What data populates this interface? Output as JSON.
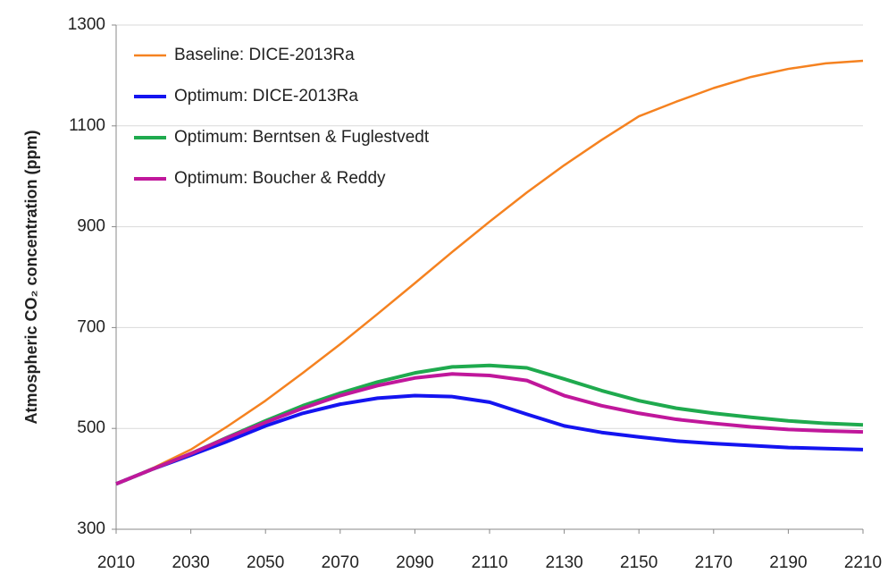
{
  "chart_data": {
    "type": "line",
    "y_label": "Atmospheric CO₂ concentration (ppm)",
    "x": [
      2010,
      2020,
      2030,
      2040,
      2050,
      2060,
      2070,
      2080,
      2090,
      2100,
      2110,
      2120,
      2130,
      2140,
      2150,
      2160,
      2170,
      2180,
      2190,
      2200,
      2210
    ],
    "xlim": [
      2010,
      2210
    ],
    "xticks": [
      2010,
      2030,
      2050,
      2070,
      2090,
      2110,
      2130,
      2150,
      2170,
      2190,
      2210
    ],
    "ylim": [
      300,
      1300
    ],
    "yticks": [
      300,
      500,
      700,
      900,
      1100,
      1300
    ],
    "grid": true,
    "legend": "upper left",
    "series": [
      {
        "name": "Baseline: DICE-2013Ra",
        "color": "#f58220",
        "width": 2.5,
        "values": [
          390,
          422,
          458,
          505,
          555,
          610,
          667,
          727,
          788,
          850,
          910,
          968,
          1022,
          1072,
          1119,
          1148,
          1175,
          1197,
          1213,
          1224,
          1229
        ]
      },
      {
        "name": "Optimum: DICE-2013Ra",
        "color": "#1414f0",
        "width": 4,
        "values": [
          390,
          420,
          447,
          475,
          505,
          530,
          548,
          560,
          565,
          563,
          552,
          528,
          505,
          492,
          483,
          475,
          470,
          466,
          462,
          460,
          458
        ]
      },
      {
        "name": "Optimum: Berntsen & Fuglestvedt",
        "color": "#1faa4e",
        "width": 4,
        "values": [
          390,
          420,
          450,
          483,
          515,
          545,
          570,
          592,
          610,
          622,
          625,
          620,
          598,
          575,
          555,
          540,
          530,
          522,
          515,
          510,
          507
        ]
      },
      {
        "name": "Optimum: Boucher & Reddy",
        "color": "#c0179b",
        "width": 4,
        "values": [
          390,
          420,
          450,
          482,
          512,
          540,
          565,
          585,
          600,
          608,
          605,
          595,
          565,
          545,
          530,
          518,
          510,
          503,
          498,
          495,
          493
        ]
      }
    ]
  }
}
